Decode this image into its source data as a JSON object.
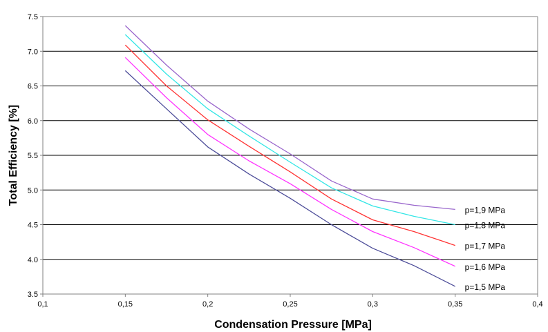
{
  "chart_data": {
    "type": "line",
    "title": "",
    "xlabel": "Condensation Pressure [MPa]",
    "ylabel": "Total Efficiency [%]",
    "xlim": [
      0.1,
      0.4
    ],
    "ylim": [
      3.5,
      7.5
    ],
    "x_ticks": [
      0.1,
      0.15,
      0.2,
      0.25,
      0.3,
      0.35,
      0.4
    ],
    "x_tick_labels": [
      "0,1",
      "0,15",
      "0,2",
      "0,25",
      "0,3",
      "0,35",
      "0,4"
    ],
    "y_ticks": [
      3.5,
      4.0,
      4.5,
      5.0,
      5.5,
      6.0,
      6.5,
      7.0,
      7.5
    ],
    "y_tick_labels": [
      "3.5",
      "4.0",
      "4.5",
      "5.0",
      "5.5",
      "6.0",
      "6.5",
      "7.0",
      "7.5"
    ],
    "grid": "horizontal",
    "legend": "inline labels at line ends (right)",
    "x": [
      0.15,
      0.175,
      0.2,
      0.225,
      0.25,
      0.275,
      0.3,
      0.325,
      0.35
    ],
    "series": [
      {
        "name": "p=1,9 MPa",
        "color": "#9966CC",
        "values": [
          7.37,
          6.8,
          6.28,
          5.88,
          5.52,
          5.13,
          4.87,
          4.78,
          4.72
        ]
      },
      {
        "name": "p=1,8 MPa",
        "color": "#33E6E6",
        "values": [
          7.24,
          6.67,
          6.17,
          5.78,
          5.4,
          5.03,
          4.77,
          4.62,
          4.5
        ]
      },
      {
        "name": "p=1,7 MPa",
        "color": "#FF3333",
        "values": [
          7.09,
          6.5,
          6.01,
          5.63,
          5.26,
          4.87,
          4.57,
          4.4,
          4.2
        ]
      },
      {
        "name": "p=1,6 MPa",
        "color": "#FF33FF",
        "values": [
          6.91,
          6.33,
          5.8,
          5.42,
          5.09,
          4.72,
          4.4,
          4.17,
          3.9
        ]
      },
      {
        "name": "p=1,5 MPa",
        "color": "#4D4D99",
        "values": [
          6.72,
          6.17,
          5.62,
          5.23,
          4.88,
          4.5,
          4.16,
          3.91,
          3.61
        ]
      }
    ]
  }
}
